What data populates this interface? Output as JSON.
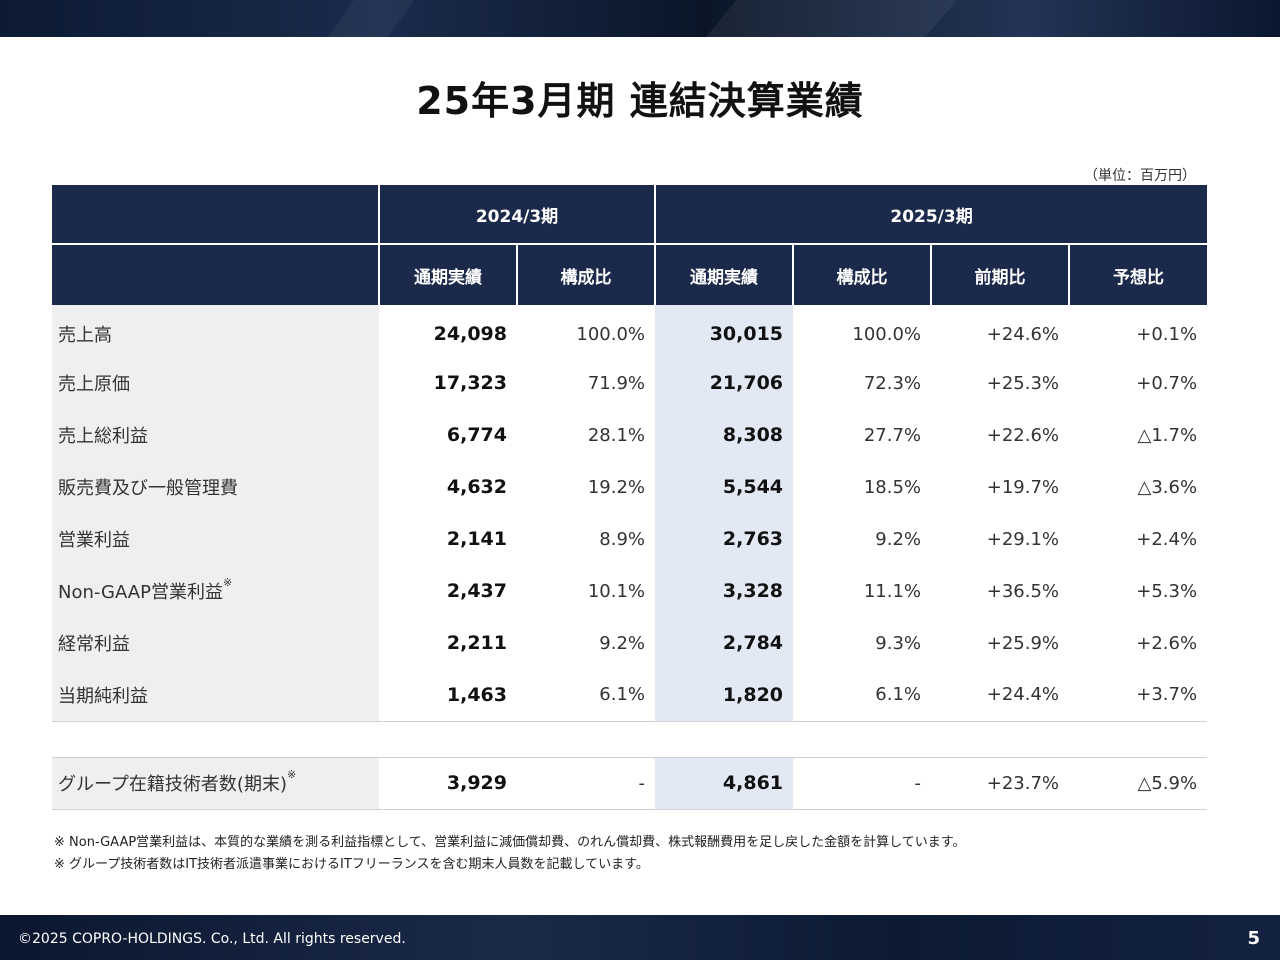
{
  "title": "25年3月期 連結決算業績",
  "unit_note": "（単位：百万円）",
  "header": {
    "period_2024": "2024/3期",
    "period_2025": "2025/3期",
    "columns": [
      "通期実績",
      "構成比",
      "通期実績",
      "構成比",
      "前期比",
      "予想比"
    ]
  },
  "rows": [
    {
      "label": "売上高",
      "sup": "",
      "v2024": "24,098",
      "r2024": "100.0%",
      "v2025": "30,015",
      "r2025": "100.0%",
      "yoy": "+24.6%",
      "vs_forecast": "+0.1%"
    },
    {
      "label": "売上原価",
      "sup": "",
      "v2024": "17,323",
      "r2024": "71.9%",
      "v2025": "21,706",
      "r2025": "72.3%",
      "yoy": "+25.3%",
      "vs_forecast": "+0.7%"
    },
    {
      "label": "売上総利益",
      "sup": "",
      "v2024": "6,774",
      "r2024": "28.1%",
      "v2025": "8,308",
      "r2025": "27.7%",
      "yoy": "+22.6%",
      "vs_forecast": "△1.7%"
    },
    {
      "label": "販売費及び一般管理費",
      "sup": "",
      "v2024": "4,632",
      "r2024": "19.2%",
      "v2025": "5,544",
      "r2025": "18.5%",
      "yoy": "+19.7%",
      "vs_forecast": "△3.6%"
    },
    {
      "label": "営業利益",
      "sup": "",
      "v2024": "2,141",
      "r2024": "8.9%",
      "v2025": "2,763",
      "r2025": "9.2%",
      "yoy": "+29.1%",
      "vs_forecast": "+2.4%"
    },
    {
      "label": "Non-GAAP営業利益",
      "sup": "※",
      "v2024": "2,437",
      "r2024": "10.1%",
      "v2025": "3,328",
      "r2025": "11.1%",
      "yoy": "+36.5%",
      "vs_forecast": "+5.3%"
    },
    {
      "label": "経常利益",
      "sup": "",
      "v2024": "2,211",
      "r2024": "9.2%",
      "v2025": "2,784",
      "r2025": "9.3%",
      "yoy": "+25.9%",
      "vs_forecast": "+2.6%"
    },
    {
      "label": "当期純利益",
      "sup": "",
      "v2024": "1,463",
      "r2024": "6.1%",
      "v2025": "1,820",
      "r2025": "6.1%",
      "yoy": "+24.4%",
      "vs_forecast": "+3.7%"
    }
  ],
  "engineers_row": {
    "label": "グループ在籍技術者数(期末)",
    "sup": "※",
    "v2024": "3,929",
    "r2024": "-",
    "v2025": "4,861",
    "r2025": "-",
    "yoy": "+23.7%",
    "vs_forecast": "△5.9%"
  },
  "footnotes": [
    "※ Non-GAAP営業利益は、本質的な業績を測る利益指標として、営業利益に減価償却費、のれん償却費、株式報酬費用を足し戻した金額を計算しています。",
    "※ グループ技術者数はIT技術者派遣事業におけるITフリーランスを含む期末人員数を記載しています。"
  ],
  "footer": {
    "copyright": "©2025 COPRO-HOLDINGS. Co., Ltd. All rights reserved.",
    "page_number": "5"
  }
}
